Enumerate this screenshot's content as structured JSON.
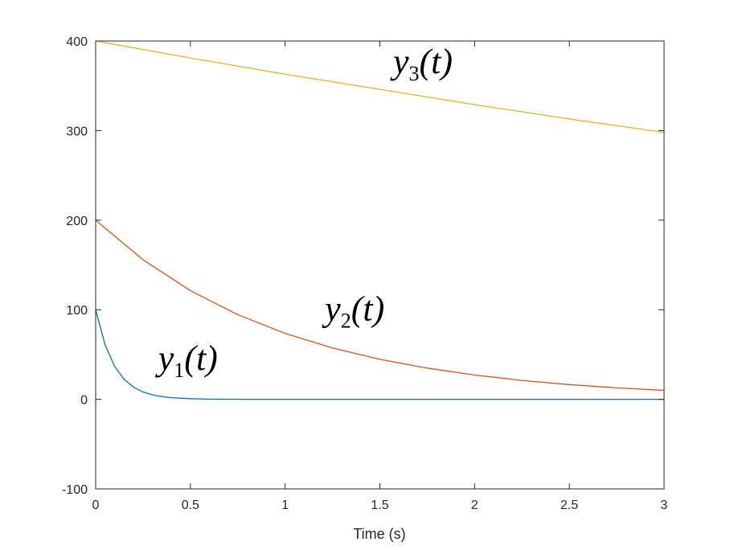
{
  "chart_data": {
    "type": "line",
    "title": "",
    "xlabel": "Time (s)",
    "ylabel": "",
    "xlim": [
      0,
      3
    ],
    "ylim": [
      -100,
      400
    ],
    "xticks": [
      0,
      0.5,
      1,
      1.5,
      2,
      2.5,
      3
    ],
    "xtick_labels": [
      "0",
      "0.5",
      "1",
      "1.5",
      "2",
      "2.5",
      "3"
    ],
    "yticks": [
      -100,
      0,
      100,
      200,
      300,
      400
    ],
    "ytick_labels": [
      "-100",
      "0",
      "100",
      "200",
      "300",
      "400"
    ],
    "grid": false,
    "legend": "none",
    "series": [
      {
        "name": "y1(t)",
        "color": "#0072BD",
        "x": [
          0,
          0.05,
          0.1,
          0.15,
          0.2,
          0.25,
          0.3,
          0.35,
          0.4,
          0.5,
          0.6,
          0.8,
          1,
          1.5,
          2,
          2.5,
          3
        ],
        "y": [
          100,
          60.7,
          36.8,
          22.3,
          13.5,
          8.2,
          5.0,
          3.0,
          1.8,
          0.7,
          0.2,
          0,
          0,
          0,
          0,
          0,
          0
        ]
      },
      {
        "name": "y2(t)",
        "color": "#D95319",
        "x": [
          0,
          0.25,
          0.5,
          0.75,
          1,
          1.25,
          1.5,
          1.75,
          2,
          2.25,
          2.5,
          2.75,
          3
        ],
        "y": [
          200,
          155.8,
          121.3,
          94.5,
          73.6,
          57.3,
          44.6,
          34.8,
          27.1,
          21.1,
          16.4,
          12.8,
          10
        ]
      },
      {
        "name": "y3(t)",
        "color": "#EDB120",
        "x": [
          0,
          0.5,
          1,
          1.5,
          2,
          2.5,
          3
        ],
        "y": [
          400,
          381,
          363,
          346,
          329,
          313,
          298
        ]
      }
    ],
    "annotations": [
      {
        "base": "y",
        "sub": "1",
        "arg": "(t)",
        "x": 0.33,
        "y": 33
      },
      {
        "base": "y",
        "sub": "2",
        "arg": "(t)",
        "x": 1.21,
        "y": 88
      },
      {
        "base": "y",
        "sub": "3",
        "arg": "(t)",
        "x": 1.57,
        "y": 364
      }
    ]
  }
}
